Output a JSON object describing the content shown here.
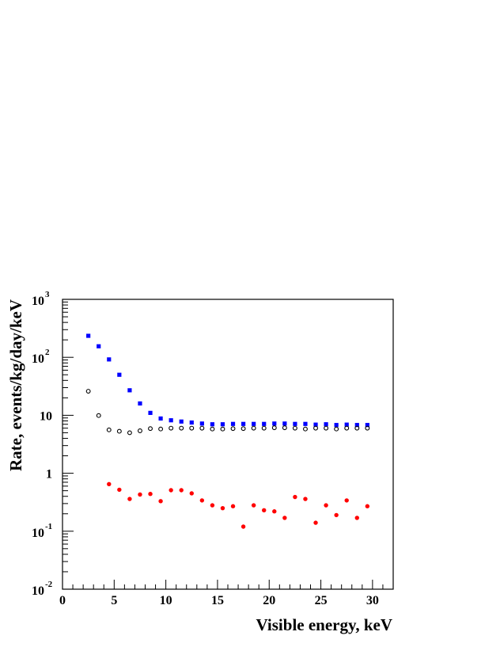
{
  "chart_data": {
    "type": "scatter",
    "title": "",
    "xlabel": "Visible energy, keV",
    "ylabel": "Rate, events/kg/day/keV",
    "xlim": [
      0,
      32
    ],
    "ylim": [
      0.01,
      1000
    ],
    "yscale": "log",
    "grid": false,
    "x_ticks": [
      0,
      5,
      10,
      15,
      20,
      25,
      30
    ],
    "x_tick_labels": [
      "0",
      "5",
      "10",
      "15",
      "20",
      "25",
      "30"
    ],
    "y_ticks": [
      {
        "value": 1000,
        "base": "10",
        "exp": "3"
      },
      {
        "value": 100,
        "base": "10",
        "exp": "2"
      },
      {
        "value": 10,
        "base": "10",
        "exp": ""
      },
      {
        "value": 1,
        "base": "1",
        "exp": ""
      },
      {
        "value": 0.1,
        "base": "10",
        "exp": "-1"
      },
      {
        "value": 0.01,
        "base": "10",
        "exp": "-2"
      }
    ],
    "series": [
      {
        "marker": "filled-square",
        "color": "#0000ff",
        "x": [
          2.5,
          3.5,
          4.5,
          5.5,
          6.5,
          7.5,
          8.5,
          9.5,
          10.5,
          11.5,
          12.5,
          13.5,
          14.5,
          15.5,
          16.5,
          17.5,
          18.5,
          19.5,
          20.5,
          21.5,
          22.5,
          23.5,
          24.5,
          25.5,
          26.5,
          27.5,
          28.5,
          29.5
        ],
        "values": [
          235,
          155,
          92,
          50,
          27,
          16,
          11,
          8.8,
          8.2,
          7.8,
          7.5,
          7.2,
          7.0,
          7.0,
          7.1,
          7.1,
          7.1,
          7.1,
          7.2,
          7.2,
          7.1,
          7.1,
          6.9,
          7.0,
          6.8,
          6.9,
          6.8,
          6.8
        ]
      },
      {
        "marker": "open-circle",
        "color": "#000000",
        "x": [
          2.5,
          3.5,
          4.5,
          5.5,
          6.5,
          7.5,
          8.5,
          9.5,
          10.5,
          11.5,
          12.5,
          13.5,
          14.5,
          15.5,
          16.5,
          17.5,
          18.5,
          19.5,
          20.5,
          21.5,
          22.5,
          23.5,
          24.5,
          25.5,
          26.5,
          27.5,
          28.5,
          29.5
        ],
        "values": [
          26,
          9.9,
          5.6,
          5.3,
          5.0,
          5.4,
          5.9,
          5.8,
          6.0,
          6.0,
          6.0,
          6.0,
          5.8,
          5.8,
          5.9,
          5.9,
          6.0,
          6.0,
          6.1,
          6.1,
          6.0,
          5.8,
          6.0,
          6.0,
          5.8,
          6.0,
          6.0,
          6.0
        ]
      },
      {
        "marker": "filled-circle",
        "color": "#ff0000",
        "x": [
          4.5,
          5.5,
          6.5,
          7.5,
          8.5,
          9.5,
          10.5,
          11.5,
          12.5,
          13.5,
          14.5,
          15.5,
          16.5,
          17.5,
          18.5,
          19.5,
          20.5,
          21.5,
          22.5,
          23.5,
          24.5,
          25.5,
          26.5,
          27.5,
          28.5,
          29.5
        ],
        "values": [
          0.65,
          0.52,
          0.36,
          0.43,
          0.44,
          0.33,
          0.51,
          0.51,
          0.45,
          0.34,
          0.28,
          0.25,
          0.27,
          0.12,
          0.28,
          0.23,
          0.22,
          0.17,
          0.39,
          0.36,
          0.14,
          0.28,
          0.19,
          0.34,
          0.17,
          0.27
        ]
      }
    ]
  }
}
